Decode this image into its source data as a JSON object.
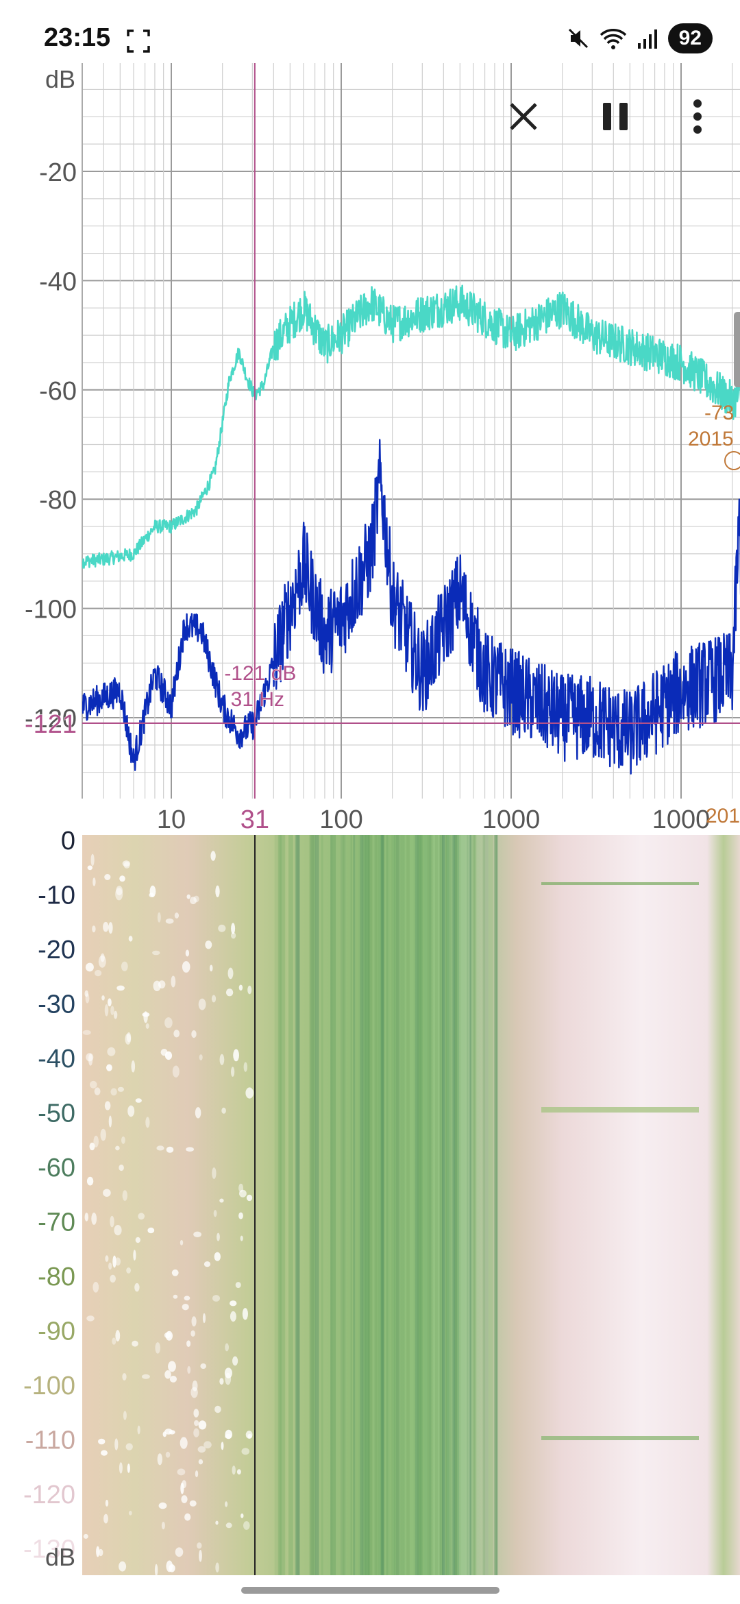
{
  "status_bar": {
    "time": "23:15",
    "battery": "92",
    "icons": [
      "screenshot-icon",
      "mute-icon",
      "wifi-icon",
      "signal-icon",
      "battery-icon"
    ]
  },
  "toolbar": {
    "close_icon": "close-icon",
    "pause_icon": "pause-icon",
    "menu_icon": "more-vertical-icon"
  },
  "colors": {
    "peak_trace": "#4ad8c6",
    "current_trace": "#0a2bb8",
    "cursor": "#b0508a",
    "peak_marker": "#c07838",
    "grid": "#cfcfcf",
    "axis_text": "#555555"
  },
  "spectrum": {
    "y_unit": "dB",
    "y_ticks": [
      "-20",
      "-40",
      "-60",
      "-80",
      "-100",
      "-120"
    ],
    "x_ticks": [
      "10",
      "100",
      "1000",
      "1000"
    ],
    "x_partial_tick": "201",
    "cursor_x_label": "31",
    "cursor_y_label": "-121",
    "cursor_readout_db": "-121 dB",
    "cursor_readout_hz": "31 Hz",
    "peak_readout_db": "-73",
    "peak_readout_hz": "2015"
  },
  "spectrogram": {
    "y_unit": "dB",
    "y_ticks": [
      "0",
      "-10",
      "-20",
      "-30",
      "-40",
      "-50",
      "-60",
      "-70",
      "-80",
      "-90",
      "-100",
      "-110",
      "-120",
      "-130"
    ]
  },
  "chart_data": [
    {
      "type": "line",
      "x_scale": "log",
      "xlim": [
        2,
        25000
      ],
      "ylim": [
        -135,
        0
      ],
      "grid": true,
      "series": [
        {
          "values_x": [
            2,
            4,
            6,
            8,
            10,
            14,
            18,
            22,
            25,
            28,
            31,
            35,
            40,
            50,
            60,
            80,
            100,
            150,
            200,
            300,
            500,
            1000,
            2000,
            3000,
            5000,
            10000,
            20000,
            25000
          ],
          "values_y": [
            -92,
            -91,
            -90,
            -85,
            -85,
            -82,
            -75,
            -58,
            -53,
            -58,
            -61,
            -59,
            -52,
            -48,
            -45,
            -52,
            -50,
            -44,
            -48,
            -46,
            -44,
            -50,
            -45,
            -50,
            -52,
            -55,
            -62,
            -60
          ]
        },
        {
          "values_x": [
            2,
            3,
            5,
            6,
            8,
            10,
            12,
            15,
            20,
            25,
            31,
            40,
            50,
            60,
            80,
            100,
            150,
            170,
            200,
            300,
            500,
            700,
            1000,
            2000,
            3000,
            5000,
            10000,
            20000,
            22000,
            25000
          ],
          "values_y": [
            -113,
            -118,
            -115,
            -128,
            -112,
            -118,
            -103,
            -104,
            -118,
            -123,
            -121,
            -110,
            -100,
            -92,
            -105,
            -102,
            -90,
            -76,
            -98,
            -112,
            -97,
            -112,
            -115,
            -120,
            -120,
            -123,
            -115,
            -112,
            -85,
            -118
          ]
        }
      ]
    },
    {
      "type": "heatmap",
      "x_scale": "log",
      "ylim": [
        -135,
        0
      ]
    }
  ]
}
